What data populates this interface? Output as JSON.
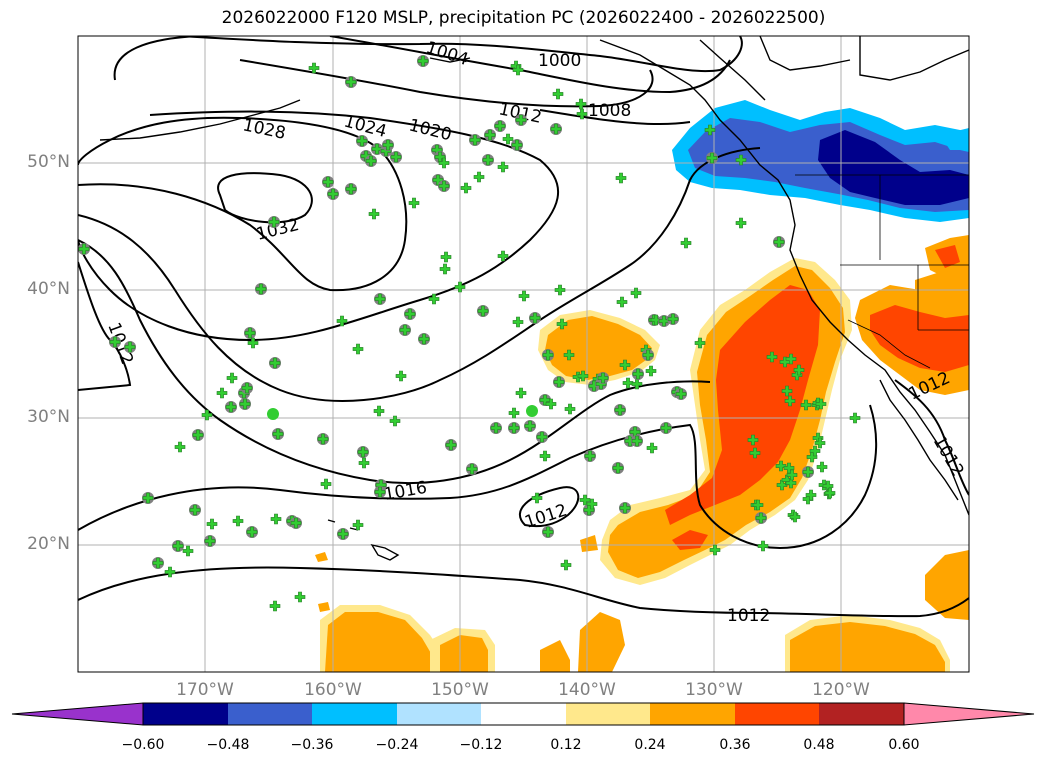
{
  "title": "2026022000 F120 MSLP, precipitation PC (2026022400 - 2026022500)",
  "lat_labels": [
    "50°N",
    "40°N",
    "30°N",
    "20°N"
  ],
  "lon_labels": [
    "170°W",
    "160°W",
    "150°W",
    "140°W",
    "130°W",
    "120°W"
  ],
  "isobar_labels": [
    "1004",
    "1000",
    "1012",
    "1008",
    "1028",
    "1024",
    "1020",
    "1032",
    "1012",
    "1016",
    "1012",
    "1012",
    "1012",
    "1012"
  ],
  "colorbar": {
    "ticks": [
      "−0.60",
      "−0.48",
      "−0.36",
      "−0.24",
      "−0.12",
      "0.12",
      "0.24",
      "0.36",
      "0.48",
      "0.60"
    ],
    "colors": [
      "#9932cc",
      "#00008b",
      "#3a5fcd",
      "#00bfff",
      "#b0e2ff",
      "#ffffff",
      "#ffe88c",
      "#ffa500",
      "#ff4500",
      "#b22222",
      "#ff88aa"
    ]
  },
  "colors": {
    "station_circle": "#808080",
    "station_marker": "#32cd32",
    "isobar": "#000000",
    "grid": "#b0b0b0"
  }
}
